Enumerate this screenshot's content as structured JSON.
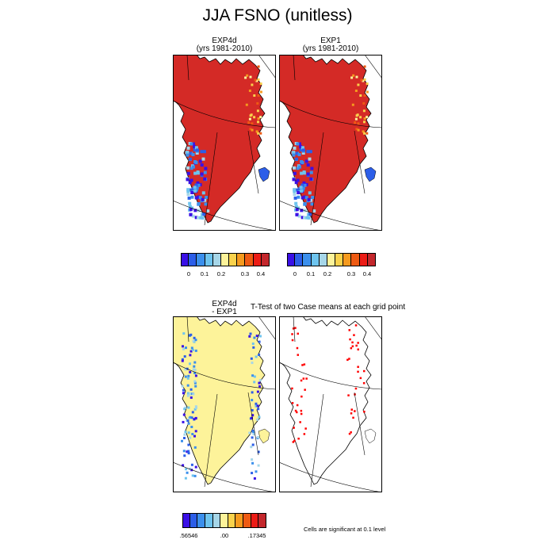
{
  "title": "JJA FSNO (unitless)",
  "panels": {
    "exp4d": {
      "line1": "EXP4d",
      "line2": "(yrs 1981-2010)"
    },
    "exp1": {
      "line1": "EXP1",
      "line2": "(yrs 1981-2010)"
    },
    "diff": {
      "line1": "EXP4d",
      "line2": "- EXP1"
    },
    "ttest": {
      "title": "T-Test of two Case means at each grid point"
    }
  },
  "colorbar_top": {
    "colors": [
      "#3a10e6",
      "#2c5ee8",
      "#3b8fec",
      "#6ec4ee",
      "#a6d6e8",
      "#fdf39a",
      "#f9d24c",
      "#f59a1e",
      "#ee5a12",
      "#ec1c16",
      "#c3272c"
    ],
    "labels": [
      "0",
      "0.1",
      "0.2",
      "0.3",
      "0.4"
    ]
  },
  "colorbar_bottom": {
    "colors": [
      "#3a10e6",
      "#2c5ee8",
      "#3b8fec",
      "#6ec4ee",
      "#a6d6e8",
      "#fdf39a",
      "#f9d24c",
      "#f59a1e",
      "#ee5a12",
      "#ec1c16",
      "#c3272c"
    ],
    "labels": [
      ".56546",
      ".00",
      ".17345"
    ]
  },
  "significance_note": "Cells are significant at 0.1 level",
  "colors": {
    "snow_full": "#d42a26",
    "diff_zero": "#fdf39a",
    "significant": "#ff0000"
  }
}
